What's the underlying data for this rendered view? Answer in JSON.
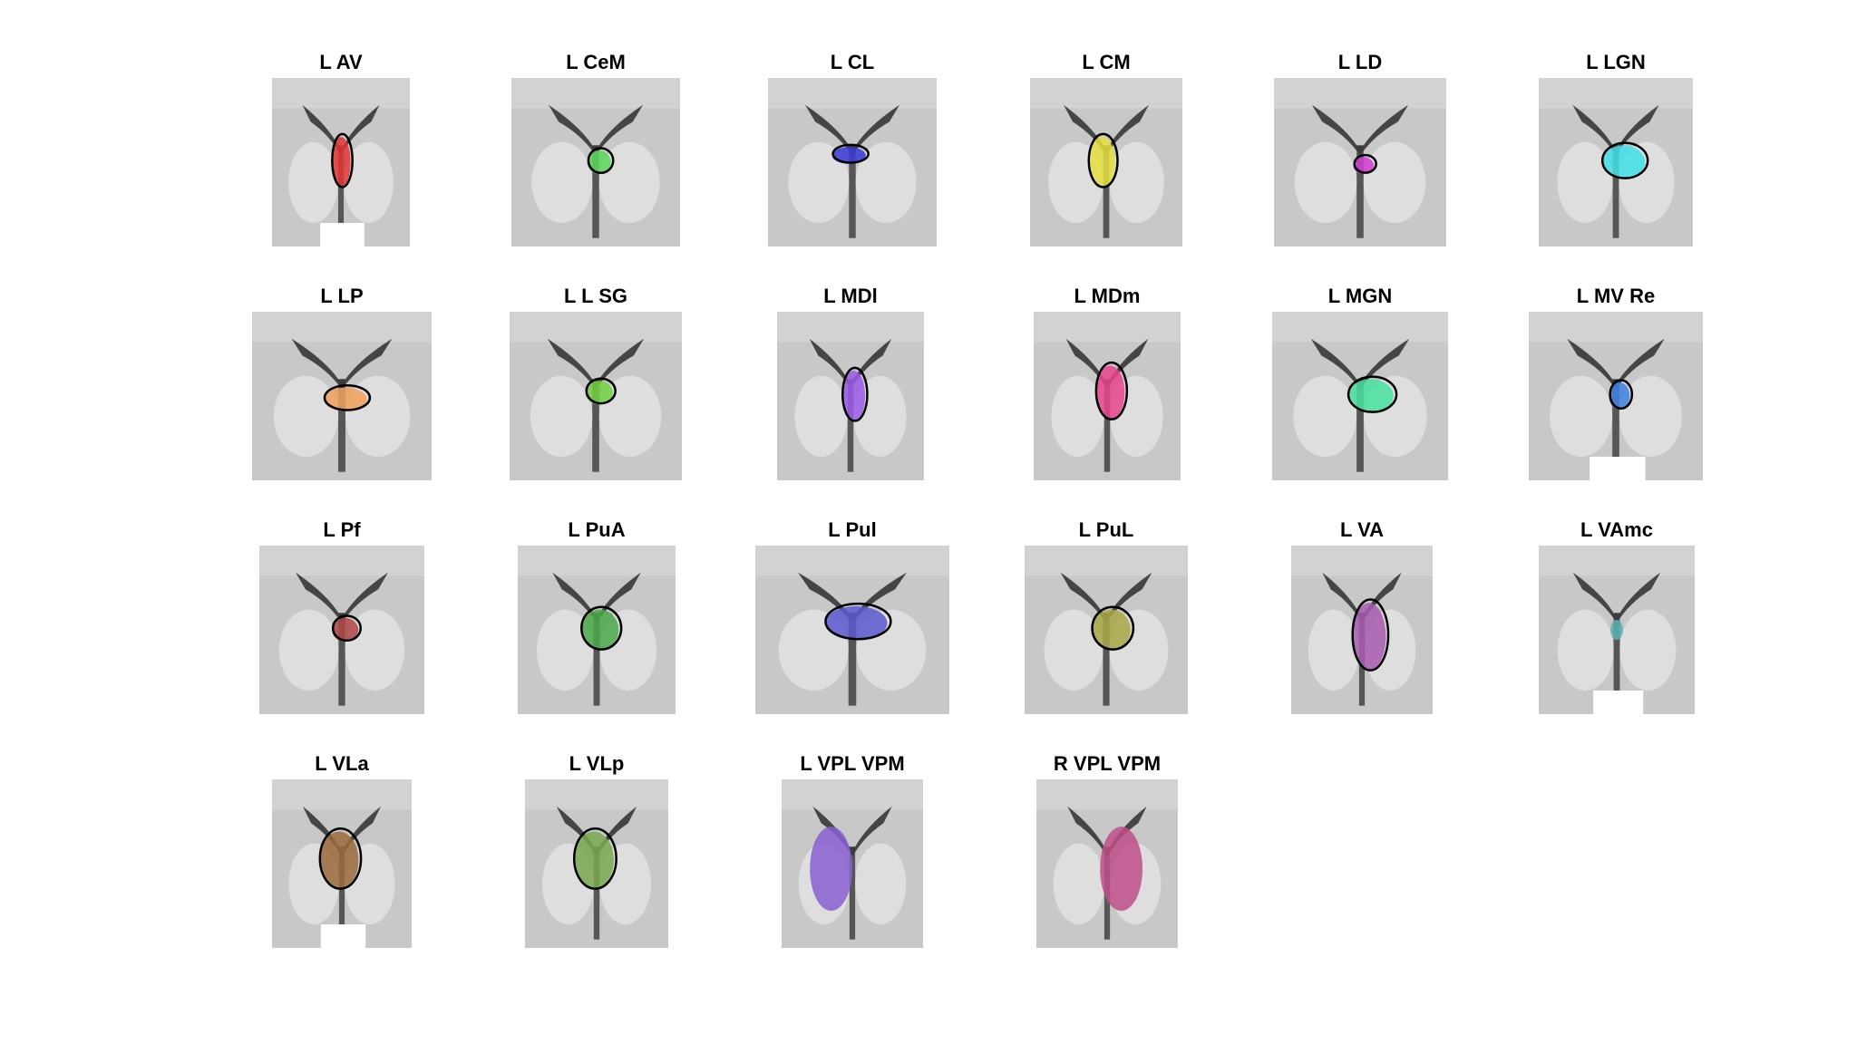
{
  "figure": {
    "panels": [
      {
        "title": "L AV",
        "highlight": "#e03535",
        "outline": true
      },
      {
        "title": "L CeM",
        "highlight": "#5bd75b",
        "outline": true
      },
      {
        "title": "L CL",
        "highlight": "#3a3ad8",
        "outline": true
      },
      {
        "title": "L CM",
        "highlight": "#e4e040",
        "outline": true
      },
      {
        "title": "L LD",
        "highlight": "#d23ad2",
        "outline": true
      },
      {
        "title": "L LGN",
        "highlight": "#3fe0e6",
        "outline": true
      },
      {
        "title": "L LP",
        "highlight": "#f0a05a",
        "outline": true
      },
      {
        "title": "L L SG",
        "highlight": "#72d040",
        "outline": true
      },
      {
        "title": "L MDl",
        "highlight": "#9a5ae8",
        "outline": true
      },
      {
        "title": "L MDm",
        "highlight": "#e8458e",
        "outline": true
      },
      {
        "title": "L MGN",
        "highlight": "#48e0a0",
        "outline": true
      },
      {
        "title": "L MV Re",
        "highlight": "#3f82e0",
        "outline": true
      },
      {
        "title": "L Pf",
        "highlight": "#b04545",
        "outline": true
      },
      {
        "title": "L PuA",
        "highlight": "#4aa84a",
        "outline": true
      },
      {
        "title": "L Pul",
        "highlight": "#5a5ad0",
        "outline": true
      },
      {
        "title": "L PuL",
        "highlight": "#a8a845",
        "outline": true
      },
      {
        "title": "L VA",
        "highlight": "#a85ab0",
        "outline": true
      },
      {
        "title": "L VAmc",
        "highlight": "#5ab0b0",
        "outline": false
      },
      {
        "title": "L VLa",
        "highlight": "#9a6a3a",
        "outline": true
      },
      {
        "title": "L VLp",
        "highlight": "#78a850",
        "outline": true
      },
      {
        "title": "L VPL VPM",
        "highlight": "#8a60d0",
        "outline": false
      },
      {
        "title": "R VPL VPM",
        "highlight": "#c04e8a",
        "outline": false
      }
    ]
  }
}
